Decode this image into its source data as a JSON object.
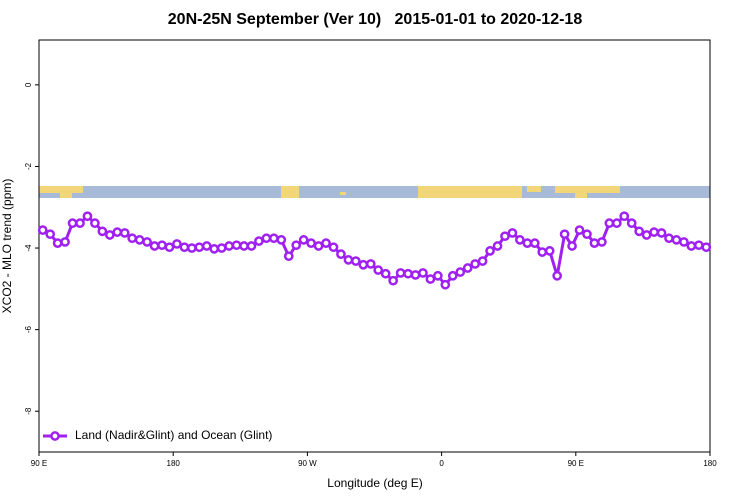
{
  "chart_data": {
    "type": "line",
    "title": "20N-25N September (Ver 10)   2015-01-01 to 2020-12-18",
    "xlabel": "Longitude (deg E)",
    "ylabel": "XCO2 - MLO trend (ppm)",
    "xlim": [
      90,
      540
    ],
    "ylim": [
      -9,
      1.1
    ],
    "xticks": [
      {
        "value": 90,
        "label": "90 E"
      },
      {
        "value": 180,
        "label": "180"
      },
      {
        "value": 270,
        "label": "90 W"
      },
      {
        "value": 360,
        "label": "0"
      },
      {
        "value": 450,
        "label": "90 E"
      },
      {
        "value": 540,
        "label": "180"
      }
    ],
    "yticks": [
      0,
      -2,
      -4,
      -6,
      -8
    ],
    "legend": "bottom-left",
    "grid": false,
    "series": [
      {
        "name": "Land (Nadir&Glint) and Ocean (Glint)",
        "color": "#a020f0",
        "x": [
          92.5,
          97.5,
          102.5,
          107.5,
          112.5,
          117.5,
          122.5,
          127.5,
          132.5,
          137.5,
          142.5,
          147.5,
          152.5,
          157.5,
          162.5,
          167.5,
          172.5,
          177.5,
          182.5,
          187.5,
          192.5,
          197.5,
          202.5,
          207.5,
          212.5,
          217.5,
          222.5,
          227.5,
          232.5,
          237.5,
          242.5,
          247.5,
          252.5,
          257.5,
          262.5,
          267.5,
          272.5,
          277.5,
          282.5,
          287.5,
          292.5,
          297.5,
          302.5,
          307.5,
          312.5,
          317.5,
          322.5,
          327.5,
          332.5,
          337.5,
          342.5,
          347.5,
          352.5,
          357.5,
          362.5,
          367.5,
          372.5,
          377.5,
          382.5,
          387.5,
          392.5,
          397.5,
          402.5,
          407.5,
          412.5,
          417.5,
          422.5,
          427.5,
          432.5,
          437.5,
          442.5,
          447.5,
          452.5,
          457.5,
          462.5,
          467.5,
          472.5,
          477.5,
          482.5,
          487.5,
          492.5,
          497.5,
          502.5,
          507.5,
          512.5,
          517.5,
          522.5,
          527.5,
          532.5,
          537.5
        ],
        "values": [
          -3.56,
          -3.66,
          -3.88,
          -3.85,
          -3.39,
          -3.39,
          -3.22,
          -3.39,
          -3.59,
          -3.68,
          -3.61,
          -3.63,
          -3.76,
          -3.8,
          -3.85,
          -3.95,
          -3.93,
          -3.98,
          -3.9,
          -3.98,
          -4.0,
          -3.98,
          -3.95,
          -4.02,
          -4.0,
          -3.95,
          -3.93,
          -3.95,
          -3.95,
          -3.83,
          -3.76,
          -3.76,
          -3.8,
          -4.2,
          -3.93,
          -3.8,
          -3.88,
          -3.95,
          -3.88,
          -3.98,
          -4.15,
          -4.29,
          -4.32,
          -4.41,
          -4.39,
          -4.54,
          -4.63,
          -4.8,
          -4.61,
          -4.63,
          -4.66,
          -4.61,
          -4.76,
          -4.68,
          -4.9,
          -4.68,
          -4.59,
          -4.49,
          -4.39,
          -4.32,
          -4.07,
          -3.95,
          -3.71,
          -3.63,
          -3.8,
          -3.88,
          -3.88,
          -4.1,
          -4.07,
          -4.68,
          -3.66,
          -3.95,
          -3.56,
          -3.66,
          -3.88,
          -3.85,
          -3.39,
          -3.39,
          -3.22,
          -3.39,
          -3.59,
          -3.68,
          -3.61,
          -3.63,
          -3.76,
          -3.8,
          -3.85,
          -3.95,
          -3.93,
          -3.98
        ]
      }
    ]
  }
}
